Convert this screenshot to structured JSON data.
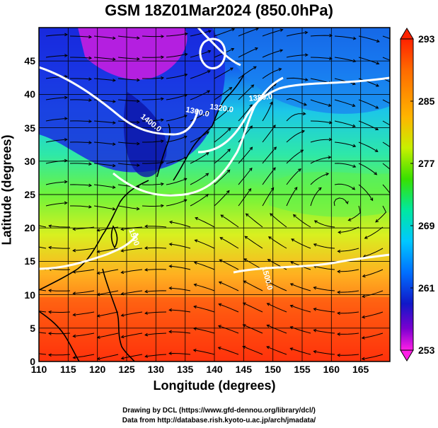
{
  "title": "GSM 18Z01Mar2024 (850.0hPa)",
  "xaxis": {
    "label": "Longitude (degrees)",
    "range": [
      110,
      170
    ],
    "ticks": [
      "110",
      "115",
      "120",
      "125",
      "130",
      "135",
      "140",
      "145",
      "150",
      "155",
      "160",
      "165"
    ]
  },
  "yaxis": {
    "label": "Latitude  (degrees)",
    "range": [
      0,
      50
    ],
    "ticks": [
      "0",
      "5",
      "10",
      "15",
      "20",
      "25",
      "30",
      "35",
      "40",
      "45"
    ]
  },
  "colorbar": {
    "ticks": [
      "293",
      "285",
      "277",
      "269",
      "261",
      "253"
    ],
    "range": [
      253,
      293
    ],
    "low_color": "#ff1ee6",
    "high_color": "#ff2200"
  },
  "contour_labels": [
    "1400.0",
    "1360.0",
    "1320.0",
    "1380.0",
    "1500",
    "1500.0"
  ],
  "credits": {
    "drawing": "Drawing by DCL (https://www.gfd-dennou.org/library/dcl/)",
    "data": "Data from http://database.rish.kyoto-u.ac.jp/arch/jmadata/"
  },
  "colors": {
    "contour": "#ffffff",
    "gridlines": "#000000",
    "coastline": "#000000"
  }
}
